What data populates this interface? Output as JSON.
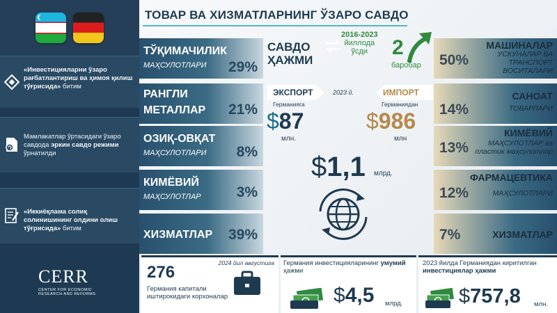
{
  "title": "ТОВАР ВА ХИЗМАТЛАРНИНГ ЎЗАРО САВДО",
  "sidebar": {
    "cards": [
      {
        "pre": "«Инвестицияларни ўзаро рағбатлантириш ва ҳимоя қилиш тўғрисида»",
        "post": " битим"
      },
      {
        "pre": "Мамлакатлар ўртасидаги ўзаро савдода ",
        "bold": "эркин савдо режими",
        "post": " ўрнатилди"
      },
      {
        "pre": "«Иккиёқлама солиқ солинишининг олдини олиш тўғрисида»",
        "post": " битим"
      }
    ],
    "logo": {
      "brand": "CERR",
      "sub_1": "CENTER FOR ECONOMIC",
      "sub_2": "RESEARCH AND REFORMS"
    }
  },
  "export_shares": [
    {
      "name": "ТЎҚИМАЧИЛИК",
      "sub": "МАҲСУЛОТЛАРИ",
      "pct": "29%"
    },
    {
      "name_1": "РАНГЛИ",
      "name_2": "МЕТАЛЛАР",
      "pct": "21%"
    },
    {
      "name": "ОЗИҚ-ОВҚАТ",
      "sub": "МАҲСУЛОТЛАРИ",
      "pct": "8%"
    },
    {
      "name": "КИМЁВИЙ",
      "sub": "МАҲСУЛОТЛАР",
      "pct": "3%"
    },
    {
      "name": "ХИЗМАТЛАР",
      "pct": "39%"
    }
  ],
  "import_shares": [
    {
      "name": "МАШИНАЛАР",
      "sub_1": "УСКУНАЛАР ВА",
      "sub_2": "ТРАНСПОРТ",
      "sub_3": "ВОСИТАЛАРИ",
      "pct": "50%"
    },
    {
      "name": "САНОАТ",
      "sub": "ТОВАРЛАРИ",
      "pct": "14%"
    },
    {
      "name": "КИМЁВИЙ",
      "sub_1": "МАҲСУЛОТЛАР ва",
      "sub_2": "пластик маҳсулотлар",
      "pct": "13%"
    },
    {
      "name": "ФАРМАЦЕВТИКА",
      "sub": "МАҲСУЛОТЛАРИ",
      "pct": "12%"
    },
    {
      "name": "ХИЗМАТЛАР",
      "pct": "7%"
    }
  ],
  "center": {
    "volume_1": "САВДО",
    "volume_2": "ҲАЖМИ",
    "period_years": "2016-2023",
    "period_1": "йиллода",
    "period_2": "ўсди",
    "growth": "2",
    "growth_unit": "баробар",
    "export_label": "ЭКСПОРТ",
    "export_sub": "Германияга",
    "import_label": "ИМПОРТ",
    "import_sub": "Германиядан",
    "year": "2023 й.",
    "currency": "$",
    "export_value": "87",
    "export_unit": "млн.",
    "import_value": "986",
    "import_unit": "млн",
    "total_value": "1,1",
    "total_unit": "млрд."
  },
  "bottom": {
    "companies": {
      "value": "276",
      "date": "2024 йил августига",
      "desc_1": "Германия капитали",
      "desc_2": "иштирокидаги корхоналар"
    },
    "investment_total": {
      "pre": "Германия инвестицияларининг",
      "bold": "умумий",
      "post": " ҳажми",
      "currency": "$",
      "value": "4,5",
      "unit": "млрд."
    },
    "investment_2023": {
      "pre": "2023 йилда Германиядан киритилган",
      "bold": "инвестициялар ҳажми",
      "currency": "$",
      "value": "757,8",
      "unit": "млн."
    }
  },
  "colors": {
    "navy": "#1e3a50",
    "green": "#2f8a3f",
    "gold": "#b5894a",
    "accent": "#55b5c9"
  }
}
